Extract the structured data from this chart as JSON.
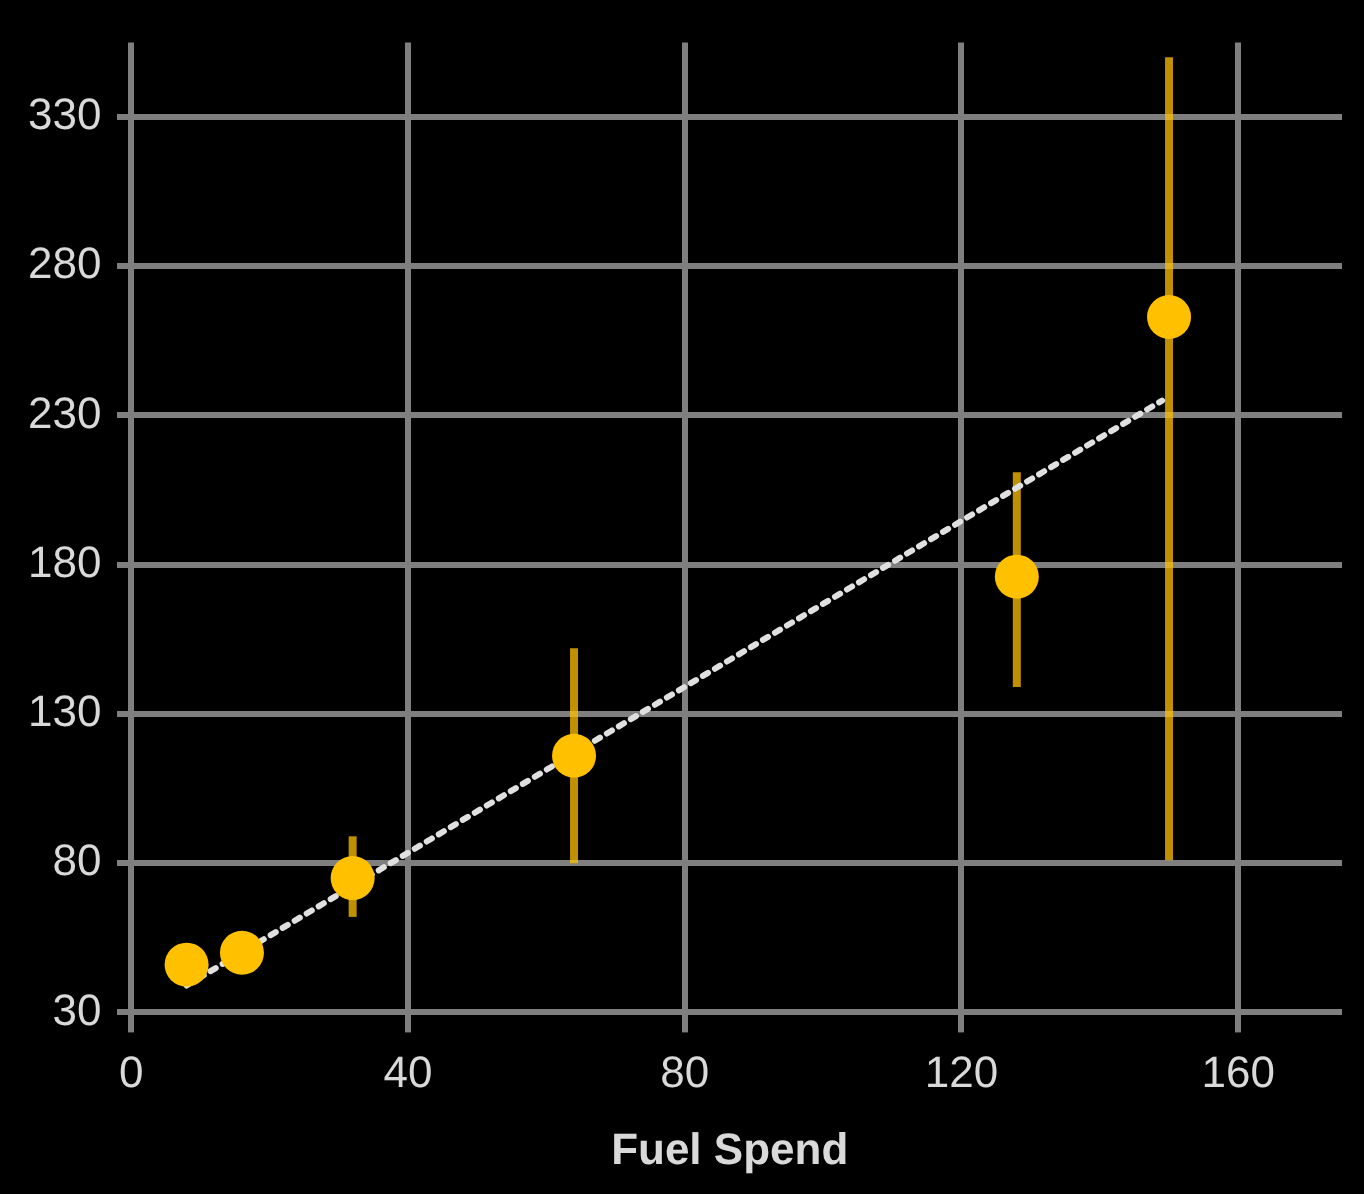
{
  "chart_data": {
    "type": "scatter",
    "xlabel": "Fuel Spend",
    "xlim": [
      -2,
      175
    ],
    "ylim": [
      30,
      355
    ],
    "xticks": [
      0,
      40,
      80,
      120,
      160
    ],
    "yticks": [
      30,
      80,
      130,
      180,
      230,
      280,
      330
    ],
    "grid": true,
    "legend": false,
    "marker": "circle",
    "series": [
      {
        "color": "#ffc000",
        "x": [
          8,
          16,
          32,
          64,
          128,
          150
        ],
        "values": [
          46,
          50,
          75,
          116,
          176,
          263
        ],
        "errors": [
          null,
          null,
          [
            62,
            89
          ],
          [
            80,
            152
          ],
          [
            139,
            211
          ],
          [
            81,
            350
          ]
        ]
      },
      {
        "type": "line",
        "color": "#e0e0e0",
        "line_style": "dotted",
        "marker": "none",
        "x": [
          8,
          149
        ],
        "values": [
          39,
          235
        ]
      }
    ]
  }
}
